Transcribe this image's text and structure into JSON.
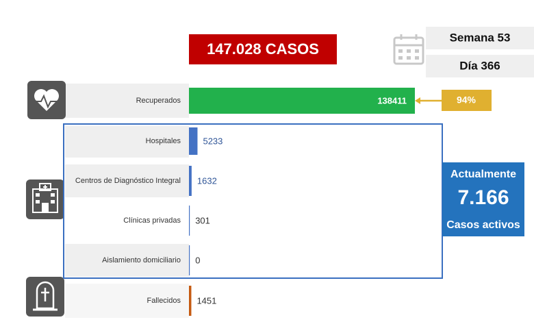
{
  "header": {
    "total": "147.028 CASOS",
    "week": "Semana 53",
    "day": "Día 366"
  },
  "chart_data": {
    "type": "bar",
    "categories": [
      "Recuperados",
      "Hospitales",
      "Centros de Diagnóstico Integral",
      "Clínicas privadas",
      "Aislamiento domiciliario",
      "Fallecidos"
    ],
    "values": [
      138411,
      5233,
      1632,
      301,
      0,
      1451
    ],
    "colors": [
      "#22b14c",
      "#4472c4",
      "#4472c4",
      "#4472c4",
      "#4472c4",
      "#c55a11"
    ]
  },
  "recovered_share": "94%",
  "active": {
    "heading": "Actualmente",
    "count": "7.166",
    "caption": "Casos activos"
  }
}
